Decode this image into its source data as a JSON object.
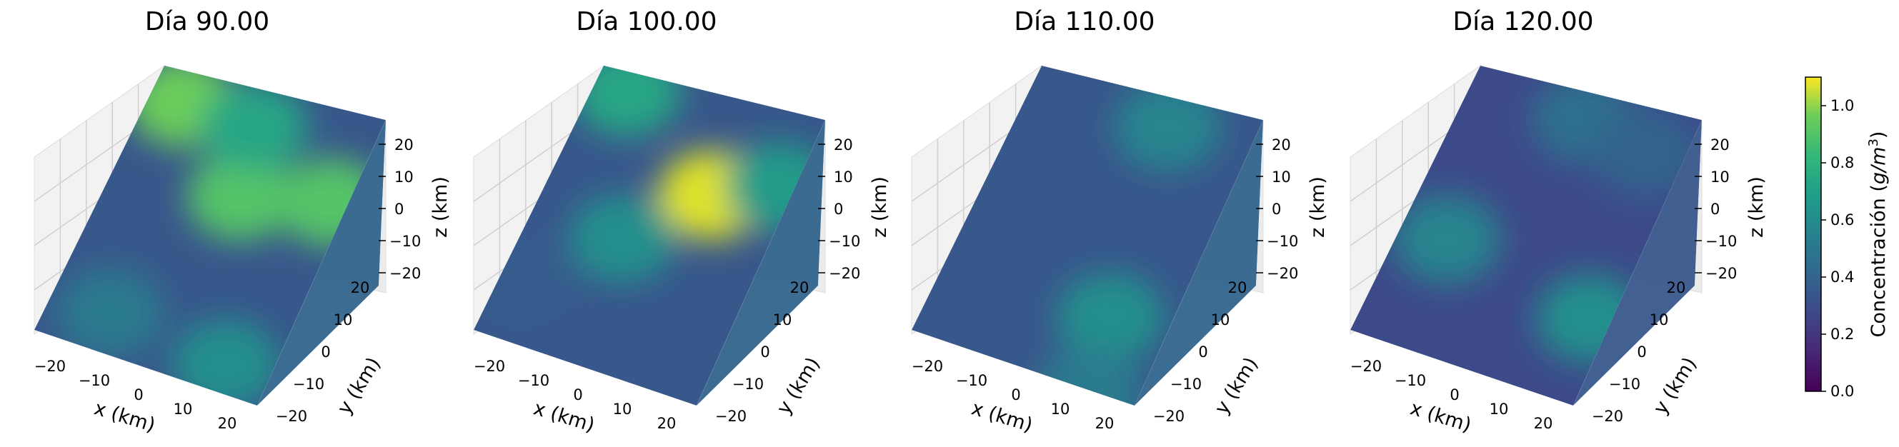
{
  "chart_data": [
    {
      "type": "heatmap",
      "title": "Día 90.00",
      "xlabel": "x (km)",
      "ylabel": "y (km)",
      "zlabel": "z (km)",
      "x_ticks": [
        "−20",
        "−10",
        "0",
        "10",
        "20"
      ],
      "y_ticks": [
        "−20",
        "−10",
        "0",
        "10",
        "20"
      ],
      "z_ticks": [
        "20",
        "10",
        "0",
        "−10",
        "−20"
      ],
      "xlim": [
        -25,
        25
      ],
      "ylim": [
        -25,
        25
      ],
      "zlim": [
        -25,
        25
      ],
      "hotspots": [
        {
          "x": 2,
          "z": 8,
          "value": 0.8
        },
        {
          "x": -18,
          "z": 20,
          "value": 0.85
        },
        {
          "x": 20,
          "z": 12,
          "value": 0.8
        },
        {
          "x": -2,
          "z": 20,
          "value": 0.65
        },
        {
          "x": -12,
          "z": -18,
          "value": 0.45
        },
        {
          "x": 15,
          "z": -20,
          "value": 0.55
        }
      ],
      "base_value": 0.3
    },
    {
      "type": "heatmap",
      "title": "Día 100.00",
      "xlabel": "x (km)",
      "ylabel": "y (km)",
      "zlabel": "z (km)",
      "x_ticks": [
        "−20",
        "−10",
        "0",
        "10",
        "20"
      ],
      "y_ticks": [
        "−20",
        "−10",
        "0",
        "10",
        "20"
      ],
      "z_ticks": [
        "20",
        "10",
        "0",
        "−10",
        "−20"
      ],
      "xlim": [
        -25,
        25
      ],
      "ylim": [
        -25,
        25
      ],
      "zlim": [
        -25,
        25
      ],
      "hotspots": [
        {
          "x": 8,
          "z": 10,
          "value": 1.05
        },
        {
          "x": -18,
          "z": 22,
          "value": 0.65
        },
        {
          "x": -5,
          "z": -2,
          "value": 0.55
        },
        {
          "x": 20,
          "z": 15,
          "value": 0.6
        },
        {
          "x": -20,
          "z": -15,
          "value": 0.32
        }
      ],
      "base_value": 0.3
    },
    {
      "type": "heatmap",
      "title": "Día 110.00",
      "xlabel": "x (km)",
      "ylabel": "y (km)",
      "zlabel": "z (km)",
      "x_ticks": [
        "−20",
        "−10",
        "0",
        "10",
        "20"
      ],
      "y_ticks": [
        "−20",
        "−10",
        "0",
        "10",
        "20"
      ],
      "z_ticks": [
        "20",
        "10",
        "0",
        "−10",
        "−20"
      ],
      "xlim": [
        -25,
        25
      ],
      "ylim": [
        -25,
        25
      ],
      "zlim": [
        -25,
        25
      ],
      "hotspots": [
        {
          "x": 12,
          "z": -12,
          "value": 0.55
        },
        {
          "x": 5,
          "z": 22,
          "value": 0.5
        },
        {
          "x": 15,
          "z": -25,
          "value": 0.45
        }
      ],
      "base_value": 0.3
    },
    {
      "type": "heatmap",
      "title": "Día 120.00",
      "xlabel": "x (km)",
      "ylabel": "y (km)",
      "zlabel": "z (km)",
      "x_ticks": [
        "−20",
        "−10",
        "0",
        "10",
        "20"
      ],
      "y_ticks": [
        "−20",
        "−10",
        "0",
        "10",
        "20"
      ],
      "z_ticks": [
        "20",
        "10",
        "0",
        "−10",
        "−20"
      ],
      "xlim": [
        -25,
        25
      ],
      "ylim": [
        -25,
        25
      ],
      "zlim": [
        -25,
        25
      ],
      "hotspots": [
        {
          "x": 20,
          "z": -10,
          "value": 0.55
        },
        {
          "x": -15,
          "z": -5,
          "value": 0.5
        },
        {
          "x": 0,
          "z": 22,
          "value": 0.4
        },
        {
          "x": 15,
          "z": 20,
          "value": 0.35
        }
      ],
      "base_value": 0.25
    }
  ],
  "colorbar": {
    "label": "Concentración (g/m³)",
    "label_plain": "Concentración (",
    "label_italic": "g/m",
    "label_sup": "3",
    "label_close": ")",
    "ticks": [
      "0.0",
      "0.2",
      "0.4",
      "0.6",
      "0.8",
      "1.0"
    ],
    "range": [
      0.0,
      1.1
    ],
    "colormap": "viridis"
  }
}
